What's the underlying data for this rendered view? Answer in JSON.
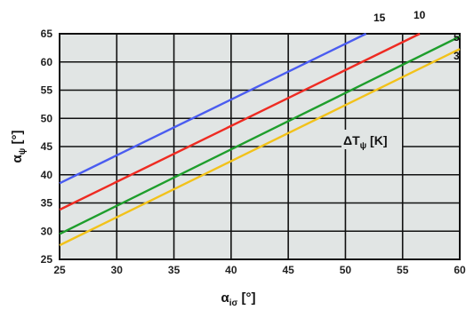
{
  "chart_data": {
    "type": "line",
    "xlabel": {
      "main": "α",
      "sub": "iσ",
      "unit": " [°]"
    },
    "ylabel": {
      "main": "α",
      "sub": "ψ",
      "unit": " [°]"
    },
    "xlim": [
      25,
      60
    ],
    "ylim": [
      25,
      65
    ],
    "xticks": [
      "25",
      "30",
      "35",
      "40",
      "45",
      "50",
      "55",
      "60"
    ],
    "yticks": [
      "25",
      "30",
      "35",
      "40",
      "45",
      "50",
      "55",
      "60",
      "65"
    ],
    "grid": true,
    "annotation": {
      "main": "ΔT",
      "sub": "ψ",
      "unit": " [K]"
    },
    "series": [
      {
        "name": "15",
        "color": "#4a5cf0",
        "points": [
          [
            25,
            38.5
          ],
          [
            51.8,
            65
          ]
        ]
      },
      {
        "name": "10",
        "color": "#ee2b22",
        "points": [
          [
            25,
            33.8
          ],
          [
            56.5,
            65
          ]
        ]
      },
      {
        "name": "5",
        "color": "#1e9e2c",
        "points": [
          [
            25,
            29.5
          ],
          [
            60,
            64.5
          ]
        ]
      },
      {
        "name": "3",
        "color": "#f2c21a",
        "points": [
          [
            25,
            27.5
          ],
          [
            60,
            62.3
          ]
        ]
      }
    ]
  }
}
